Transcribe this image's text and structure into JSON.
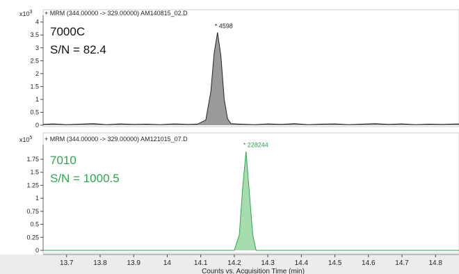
{
  "chart_data": [
    {
      "type": "line",
      "panel_header": "+ MRM (344.00000 -> 329.00000) AM140815_02.D",
      "y_multiplier": "x10",
      "y_exponent": "3",
      "instrument_label": "7000C",
      "sn_label": "S/N = 82.4",
      "peak_label": "4598",
      "peak_apex": [
        14.15,
        3.6
      ],
      "ylim": [
        0,
        4.1
      ],
      "xlim": [
        13.63,
        14.87
      ],
      "y_ticks": [
        "0",
        "0.5",
        "1",
        "1.5",
        "2",
        "2.5",
        "3",
        "3.5",
        "4"
      ],
      "color": "#222222",
      "fill": "#9a9a9a",
      "series": [
        {
          "x": [
            13.63,
            13.66,
            13.7,
            13.74,
            13.78,
            13.82,
            13.86,
            13.9,
            13.94,
            13.98,
            14.02,
            14.06,
            14.09,
            14.115,
            14.13,
            14.14,
            14.15,
            14.16,
            14.17,
            14.18,
            14.19,
            14.22,
            14.26,
            14.3,
            14.34,
            14.38,
            14.42,
            14.46,
            14.5,
            14.54,
            14.58,
            14.62,
            14.66,
            14.7,
            14.74,
            14.78,
            14.82,
            14.87
          ],
          "y": [
            0.03,
            0.05,
            0.02,
            0.04,
            0.06,
            0.02,
            0.05,
            0.03,
            0.04,
            0.02,
            0.05,
            0.03,
            0.04,
            0.2,
            1.3,
            2.8,
            3.6,
            2.7,
            1.0,
            0.25,
            0.06,
            0.04,
            0.02,
            0.05,
            0.03,
            0.06,
            0.02,
            0.04,
            0.05,
            0.02,
            0.04,
            0.06,
            0.03,
            0.05,
            0.02,
            0.04,
            0.03,
            0.05
          ]
        }
      ]
    },
    {
      "type": "line",
      "panel_header": "+ MRM (344.00000 -> 329.00000) AM121015_07.D",
      "y_multiplier": "x10",
      "y_exponent": "5",
      "instrument_label": "7010",
      "sn_label": "S/N = 1000.5",
      "peak_label": "228244",
      "peak_apex": [
        14.235,
        1.9
      ],
      "ylim": [
        0,
        1.95
      ],
      "xlim": [
        13.63,
        14.87
      ],
      "y_ticks": [
        "0",
        "0.25",
        "0.5",
        "0.75",
        "1",
        "1.25",
        "1.5",
        "1.75"
      ],
      "x_ticks": [
        "13.7",
        "13.8",
        "13.9",
        "14",
        "14.1",
        "14.2",
        "14.3",
        "14.4",
        "14.5",
        "14.6",
        "14.7",
        "14.8"
      ],
      "xlabel": "Counts vs. Acquisition Time (min)",
      "color": "#2ea64f",
      "fill": "#a6dcae",
      "series": [
        {
          "x": [
            13.63,
            14.2,
            14.215,
            14.225,
            14.235,
            14.245,
            14.255,
            14.265,
            14.87
          ],
          "y": [
            0,
            0,
            0.3,
            1.2,
            1.9,
            1.1,
            0.3,
            0,
            0
          ]
        }
      ]
    }
  ]
}
